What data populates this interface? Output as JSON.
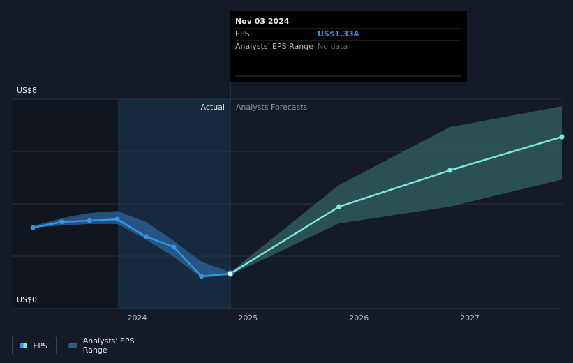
{
  "chart_data": {
    "type": "line",
    "xlim": [
      2022.87,
      2027.83
    ],
    "xticks": [
      2024,
      2025,
      2026,
      2027
    ],
    "ylim": [
      0,
      8
    ],
    "yticks": [
      {
        "value": 0,
        "label": "US$0"
      },
      {
        "value": 8,
        "label": "US$8"
      }
    ],
    "grid_values": [
      2,
      4,
      6
    ],
    "actual_until": 2024.84,
    "actual_label": "Actual",
    "forecast_label": "Analysts Forecasts",
    "series": [
      {
        "name": "EPS",
        "color": "#2d98e6",
        "forecast_color": "#7fe6d6",
        "x": [
          2023.06,
          2023.32,
          2023.57,
          2023.82,
          2024.08,
          2024.33,
          2024.58,
          2024.84,
          2025.82,
          2026.82,
          2027.83
        ],
        "values": [
          3.09,
          3.31,
          3.36,
          3.41,
          2.75,
          2.35,
          1.23,
          1.334,
          3.89,
          5.28,
          6.56
        ]
      }
    ],
    "range": {
      "name": "Analysts' EPS Range",
      "color": "#2a5f95",
      "forecast_color": "#2f5e5c",
      "x": [
        2023.06,
        2023.32,
        2023.57,
        2023.82,
        2024.08,
        2024.33,
        2024.58,
        2024.84,
        2025.82,
        2026.82,
        2027.83
      ],
      "low": [
        3.09,
        3.17,
        3.23,
        3.23,
        2.64,
        1.97,
        1.17,
        1.28,
        3.25,
        3.89,
        4.93
      ],
      "high": [
        3.15,
        3.45,
        3.65,
        3.73,
        3.31,
        2.59,
        1.79,
        1.39,
        4.72,
        6.93,
        7.73
      ]
    },
    "tooltip": {
      "date": "Nov 03 2024",
      "rows": [
        {
          "label": "EPS",
          "value": "US$1.334"
        },
        {
          "label": "Analysts' EPS Range",
          "value": "No data"
        }
      ]
    }
  }
}
